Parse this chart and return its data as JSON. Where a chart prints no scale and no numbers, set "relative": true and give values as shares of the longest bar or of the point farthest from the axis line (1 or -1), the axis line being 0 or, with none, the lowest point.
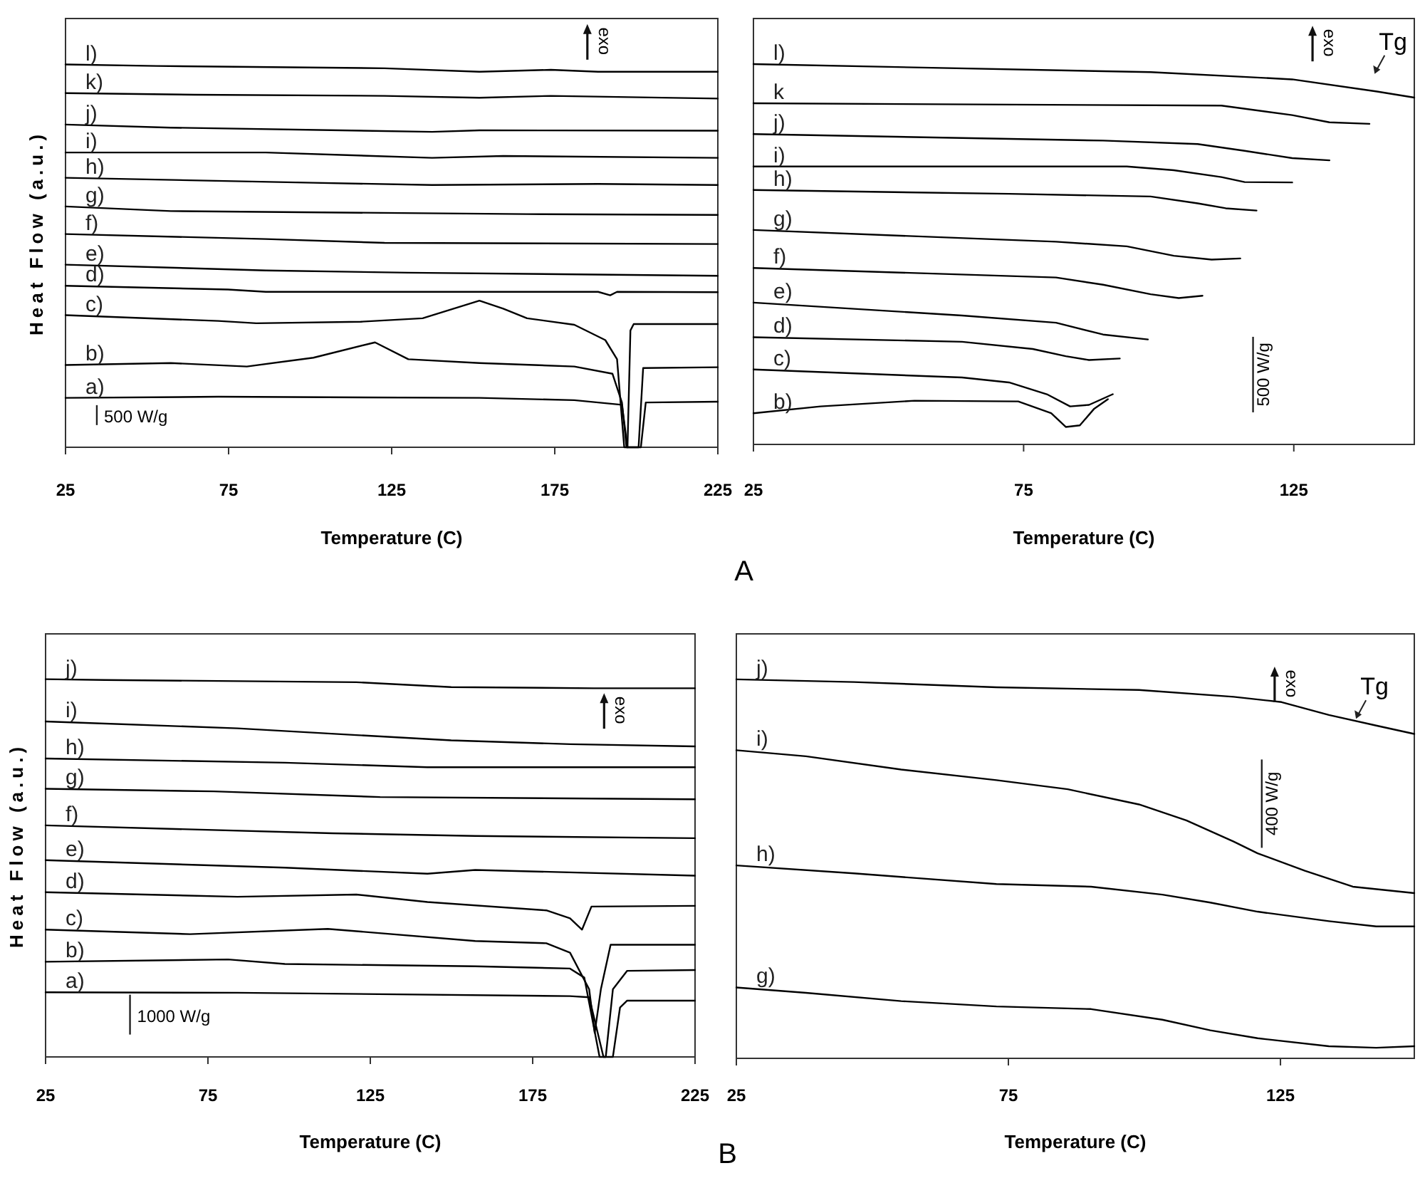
{
  "chart_data": [
    {
      "type": "line",
      "relative": true,
      "xlabel": "Temperature (C)",
      "ylabel": "Heat Flow (a.u.)",
      "xlim": [
        25,
        225
      ],
      "xticks": [
        25,
        75,
        125,
        175,
        225
      ],
      "annotations": [
        "exo",
        "500 W/g",
        "A"
      ],
      "series": [
        {
          "name": "l)",
          "color": "#000000",
          "x": [
            25,
            52.9,
            122.8,
            151.9,
            173.8,
            188.3,
            225
          ],
          "values": [
            1,
            0.996,
            0.99,
            0.981,
            0.986,
            0.981,
            0.981
          ]
        },
        {
          "name": "k)",
          "color": "#000000",
          "x": [
            25,
            64.6,
            122.8,
            151.9,
            173.8,
            225
          ],
          "values": [
            0.925,
            0.921,
            0.918,
            0.913,
            0.918,
            0.911
          ]
        },
        {
          "name": "j)",
          "color": "#000000",
          "x": [
            25,
            57.3,
            137.4,
            151.9,
            225
          ],
          "values": [
            0.843,
            0.835,
            0.824,
            0.828,
            0.827
          ]
        },
        {
          "name": "i)",
          "color": "#000000",
          "x": [
            25,
            86.4,
            137.4,
            159.2,
            225
          ],
          "values": [
            0.77,
            0.77,
            0.756,
            0.761,
            0.756
          ]
        },
        {
          "name": "h)",
          "color": "#000000",
          "x": [
            25,
            101,
            137.4,
            188.3,
            225
          ],
          "values": [
            0.704,
            0.691,
            0.685,
            0.688,
            0.685
          ]
        },
        {
          "name": "g)",
          "color": "#000000",
          "x": [
            25,
            57.3,
            166.5,
            225
          ],
          "values": [
            0.629,
            0.617,
            0.609,
            0.607
          ]
        },
        {
          "name": "f)",
          "color": "#000000",
          "x": [
            25,
            86.4,
            122.8,
            225
          ],
          "values": [
            0.557,
            0.544,
            0.534,
            0.531
          ]
        },
        {
          "name": "e)",
          "color": "#000000",
          "x": [
            25,
            86.4,
            130.1,
            225
          ],
          "values": [
            0.477,
            0.462,
            0.456,
            0.448
          ]
        },
        {
          "name": "d)",
          "color": "#000000",
          "x": [
            25,
            74.8,
            86.4,
            188.3,
            192,
            194.1,
            225
          ],
          "values": [
            0.422,
            0.412,
            0.406,
            0.406,
            0.397,
            0.406,
            0.405
          ]
        },
        {
          "name": "c)",
          "color": "#000000",
          "x": [
            25,
            71.9,
            83.5,
            115.5,
            134.5,
            151.9,
            159.2,
            166.5,
            181,
            190.5,
            194.1,
            196.3,
            197.3,
            198.2,
            199.2,
            225
          ],
          "values": [
            0.345,
            0.33,
            0.324,
            0.328,
            0.337,
            0.383,
            0.362,
            0.337,
            0.32,
            0.28,
            0.23,
            0,
            0,
            0.305,
            0.322,
            0.322
          ]
        },
        {
          "name": "b)",
          "color": "#000000",
          "x": [
            25,
            57.3,
            80.6,
            101,
            119.9,
            130.1,
            151.9,
            181,
            192.7,
            195.6,
            197,
            200.7,
            202.1,
            225
          ],
          "values": [
            0.215,
            0.22,
            0.211,
            0.234,
            0.274,
            0.23,
            0.22,
            0.211,
            0.192,
            0.117,
            0,
            0,
            0.207,
            0.209
          ]
        },
        {
          "name": "a)",
          "color": "#000000",
          "x": [
            25,
            71.9,
            151.9,
            181,
            195.6,
            197.3,
            201.4,
            202.9,
            225
          ],
          "values": [
            0.129,
            0.132,
            0.129,
            0.123,
            0.111,
            0,
            0,
            0.117,
            0.119
          ]
        }
      ]
    },
    {
      "type": "line",
      "relative": true,
      "xlabel": "Temperature (C)",
      "xlim": [
        25,
        147.3
      ],
      "xticks": [
        25,
        75,
        125
      ],
      "annotations": [
        "exo",
        "Tg",
        "500 W/g"
      ],
      "series": [
        {
          "name": "l)",
          "color": "#000000",
          "x": [
            25,
            98.5,
            124.7,
            140.4,
            147.3
          ],
          "values": [
            1,
            0.979,
            0.96,
            0.928,
            0.912
          ]
        },
        {
          "name": "k",
          "color": "#000000",
          "x": [
            25,
            111.6,
            124.7,
            131.6,
            139
          ],
          "values": [
            0.897,
            0.891,
            0.866,
            0.847,
            0.843
          ]
        },
        {
          "name": "j)",
          "color": "#000000",
          "x": [
            25,
            89.7,
            107.2,
            115.9,
            124.7,
            131.6
          ],
          "values": [
            0.816,
            0.799,
            0.79,
            0.772,
            0.753,
            0.747
          ]
        },
        {
          "name": "i)",
          "color": "#000000",
          "x": [
            25,
            94.1,
            102.8,
            111.6,
            115.9,
            124.7
          ],
          "values": [
            0.731,
            0.731,
            0.721,
            0.703,
            0.69,
            0.689
          ]
        },
        {
          "name": "h)",
          "color": "#000000",
          "x": [
            25,
            72.3,
            98.5,
            107.2,
            112.4,
            118.1
          ],
          "values": [
            0.669,
            0.659,
            0.652,
            0.634,
            0.621,
            0.615
          ]
        },
        {
          "name": "g)",
          "color": "#000000",
          "x": [
            25,
            81,
            94.1,
            102.8,
            109.8,
            115.1
          ],
          "values": [
            0.564,
            0.533,
            0.521,
            0.496,
            0.486,
            0.489
          ]
        },
        {
          "name": "f)",
          "color": "#000000",
          "x": [
            25,
            81,
            89.7,
            98.5,
            103.7,
            108.1
          ],
          "values": [
            0.464,
            0.439,
            0.42,
            0.395,
            0.385,
            0.391
          ]
        },
        {
          "name": "e)",
          "color": "#000000",
          "x": [
            25,
            63.6,
            81,
            89.7,
            98
          ],
          "values": [
            0.373,
            0.339,
            0.32,
            0.289,
            0.276
          ]
        },
        {
          "name": "d)",
          "color": "#000000",
          "x": [
            25,
            63.6,
            76.7,
            82.8,
            87.1,
            92.8
          ],
          "values": [
            0.282,
            0.27,
            0.251,
            0.232,
            0.222,
            0.226
          ]
        },
        {
          "name": "c)",
          "color": "#000000",
          "x": [
            25,
            63.6,
            72.3,
            79.3,
            83.6,
            87.1,
            91.5
          ],
          "values": [
            0.197,
            0.176,
            0.163,
            0.132,
            0.1,
            0.104,
            0.132
          ]
        },
        {
          "name": "b)",
          "color": "#000000",
          "x": [
            25,
            37.4,
            54.8,
            74,
            80.1,
            82.8,
            85.4,
            88,
            90.6
          ],
          "values": [
            0.082,
            0.1,
            0.115,
            0.113,
            0.082,
            0.046,
            0.05,
            0.093,
            0.119
          ]
        }
      ]
    },
    {
      "type": "line",
      "relative": true,
      "xlabel": "Temperature (C)",
      "ylabel": "Heat Flow (a.u.)",
      "xlim": [
        25,
        225
      ],
      "xticks": [
        25,
        75,
        125,
        175,
        225
      ],
      "annotations": [
        "exo",
        "1000 W/g",
        "B"
      ],
      "series": [
        {
          "name": "j)",
          "color": "#000000",
          "x": [
            25,
            43.1,
            120.7,
            149.9,
            193.8,
            225
          ],
          "values": [
            1,
            0.998,
            0.992,
            0.979,
            0.976,
            0.976
          ]
        },
        {
          "name": "i)",
          "color": "#000000",
          "x": [
            25,
            84.1,
            120.7,
            149.9,
            186.5,
            225
          ],
          "values": [
            0.888,
            0.87,
            0.852,
            0.838,
            0.828,
            0.822
          ]
        },
        {
          "name": "h)",
          "color": "#000000",
          "x": [
            25,
            98.7,
            142.6,
            225
          ],
          "values": [
            0.79,
            0.779,
            0.767,
            0.767
          ]
        },
        {
          "name": "g)",
          "color": "#000000",
          "x": [
            25,
            76.8,
            128,
            225
          ],
          "values": [
            0.71,
            0.703,
            0.688,
            0.682
          ]
        },
        {
          "name": "f)",
          "color": "#000000",
          "x": [
            25,
            113.4,
            157.3,
            225
          ],
          "values": [
            0.613,
            0.592,
            0.585,
            0.579
          ]
        },
        {
          "name": "e)",
          "color": "#000000",
          "x": [
            25,
            98.7,
            142.6,
            157.3,
            225
          ],
          "values": [
            0.521,
            0.501,
            0.485,
            0.495,
            0.48
          ]
        },
        {
          "name": "d)",
          "color": "#000000",
          "x": [
            25,
            84.1,
            120.7,
            142.6,
            179.2,
            186.5,
            190.2,
            193.1,
            225
          ],
          "values": [
            0.436,
            0.424,
            0.43,
            0.41,
            0.388,
            0.367,
            0.337,
            0.398,
            0.4
          ]
        },
        {
          "name": "c)",
          "color": "#000000",
          "x": [
            25,
            69.5,
            111.9,
            157.3,
            179.2,
            186.5,
            192.4,
            194.1,
            196,
            199,
            225
          ],
          "values": [
            0.337,
            0.325,
            0.339,
            0.307,
            0.301,
            0.276,
            0.179,
            0.064,
            0.179,
            0.297,
            0.297
          ]
        },
        {
          "name": "b)",
          "color": "#000000",
          "x": [
            25,
            81.2,
            98.7,
            157.3,
            186.5,
            190.9,
            195.6,
            197.5,
            199.7,
            204.1,
            225
          ],
          "values": [
            0.252,
            0.258,
            0.246,
            0.24,
            0.234,
            0.21,
            0,
            0,
            0.179,
            0.228,
            0.23
          ]
        },
        {
          "name": "a)",
          "color": "#000000",
          "x": [
            25,
            84.1,
            186.5,
            192.4,
            196.8,
            199.7,
            201.9,
            204.1,
            225
          ],
          "values": [
            0.171,
            0.17,
            0.161,
            0.158,
            0,
            0,
            0.131,
            0.149,
            0.149
          ]
        }
      ]
    },
    {
      "type": "line",
      "relative": true,
      "xlabel": "Temperature (C)",
      "xlim": [
        25,
        149.6
      ],
      "xticks": [
        25,
        75,
        125
      ],
      "annotations": [
        "exo",
        "Tg",
        "400 W/g"
      ],
      "series": [
        {
          "name": "j)",
          "color": "#000000",
          "x": [
            25,
            46.6,
            72.8,
            99,
            116.4,
            125.2,
            133.9,
            142.6,
            149.6
          ],
          "values": [
            1,
            0.993,
            0.979,
            0.972,
            0.954,
            0.94,
            0.906,
            0.878,
            0.856
          ]
        },
        {
          "name": "i)",
          "color": "#000000",
          "x": [
            25,
            37.8,
            55.3,
            72.8,
            85.9,
            99,
            107.7,
            116.4,
            120.8,
            129.5,
            138.3,
            149.6
          ],
          "values": [
            0.813,
            0.797,
            0.762,
            0.734,
            0.71,
            0.67,
            0.628,
            0.572,
            0.541,
            0.495,
            0.453,
            0.436
          ]
        },
        {
          "name": "h)",
          "color": "#000000",
          "x": [
            25,
            46.6,
            72.8,
            90.2,
            103.3,
            112.1,
            120.8,
            133.9,
            142.6,
            149.6
          ],
          "values": [
            0.509,
            0.488,
            0.46,
            0.453,
            0.432,
            0.411,
            0.387,
            0.362,
            0.348,
            0.348
          ]
        },
        {
          "name": "g)",
          "color": "#000000",
          "x": [
            25,
            37.8,
            55.3,
            72.8,
            90.2,
            103.3,
            112.1,
            120.8,
            133.9,
            142.6,
            149.6
          ],
          "values": [
            0.187,
            0.173,
            0.151,
            0.137,
            0.13,
            0.102,
            0.074,
            0.053,
            0.032,
            0.028,
            0.032
          ]
        }
      ]
    }
  ]
}
